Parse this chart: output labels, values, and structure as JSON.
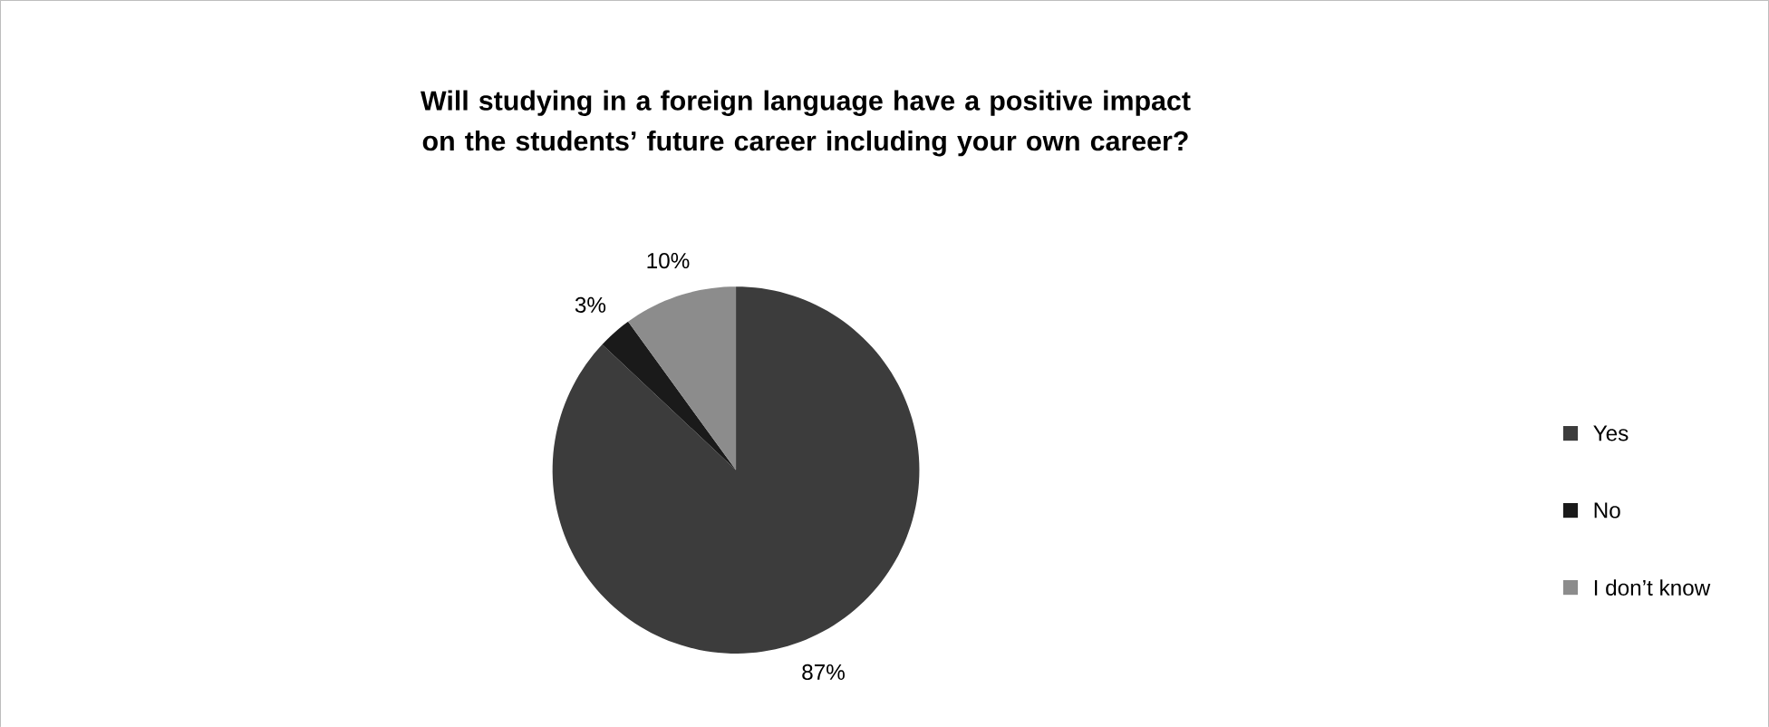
{
  "chart_data": {
    "type": "pie",
    "title": "Will studying in a foreign language have a positive impact on the students’ future career including your own career?",
    "categories": [
      "Yes",
      "No",
      "I don’t know"
    ],
    "values": [
      87,
      3,
      10
    ],
    "colors": [
      "#3c3c3c",
      "#1a1a1a",
      "#8c8c8c"
    ],
    "value_labels": [
      "87%",
      "3%",
      "10%"
    ],
    "legend": "right"
  }
}
